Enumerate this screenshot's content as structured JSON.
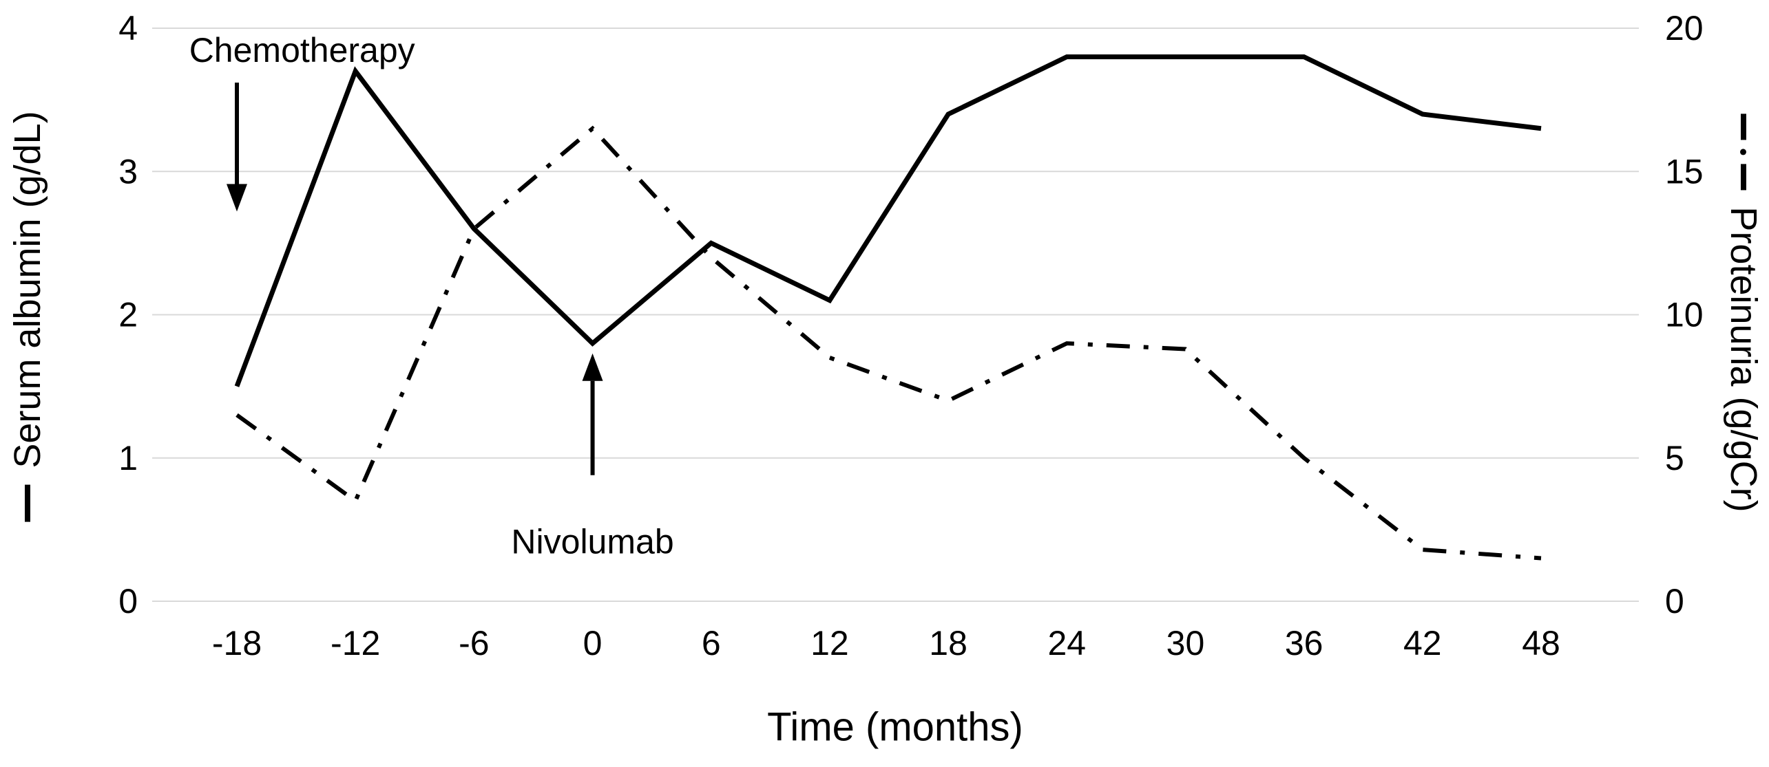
{
  "chart_data": {
    "type": "line",
    "x_label": "Time (months)",
    "x_ticks": [
      -18,
      -12,
      -6,
      0,
      6,
      12,
      18,
      24,
      30,
      36,
      42,
      48
    ],
    "x_range": [
      -18,
      48
    ],
    "grid": {
      "show": true,
      "color": "#d9d9d9"
    },
    "line_color": "#000000",
    "background": "#ffffff",
    "left_axis": {
      "label": "Serum albumin (g/dL)",
      "legend_style": "solid",
      "range": [
        0,
        4
      ],
      "ticks": [
        0,
        1,
        2,
        3,
        4
      ]
    },
    "right_axis": {
      "label": "Proteinuria (g/gCr)",
      "legend_style": "dash-dot",
      "range": [
        0,
        20
      ],
      "ticks": [
        0,
        5,
        10,
        15,
        20
      ]
    },
    "series": [
      {
        "name": "Serum albumin",
        "axis": "left",
        "style": "solid",
        "x": [
          -18,
          -12,
          -6,
          0,
          6,
          12,
          18,
          24,
          30,
          36,
          42,
          48
        ],
        "values": [
          1.5,
          3.7,
          2.6,
          1.8,
          2.5,
          2.1,
          3.4,
          3.8,
          3.8,
          3.8,
          3.4,
          3.3
        ]
      },
      {
        "name": "Proteinuria",
        "axis": "right",
        "style": "dashdot",
        "x": [
          -18,
          -12,
          -6,
          0,
          6,
          12,
          18,
          24,
          30,
          36,
          42,
          48
        ],
        "values": [
          6.5,
          3.5,
          13,
          16.5,
          12,
          8.5,
          7,
          9,
          8.8,
          5,
          1.8,
          1.5
        ]
      }
    ],
    "annotations": [
      {
        "id": "chemotherapy",
        "label": "Chemotherapy",
        "label_pos": {
          "x": -14.7,
          "y": 3.85
        },
        "arrow": {
          "x": -18,
          "y_from": 3.62,
          "y_to": 2.72,
          "direction": "down"
        }
      },
      {
        "id": "nivolumab",
        "label": "Nivolumab",
        "label_pos": {
          "x": 0,
          "y": 0.42
        },
        "arrow": {
          "x": 0,
          "y_from": 0.88,
          "y_to": 1.73,
          "direction": "up"
        }
      }
    ]
  }
}
